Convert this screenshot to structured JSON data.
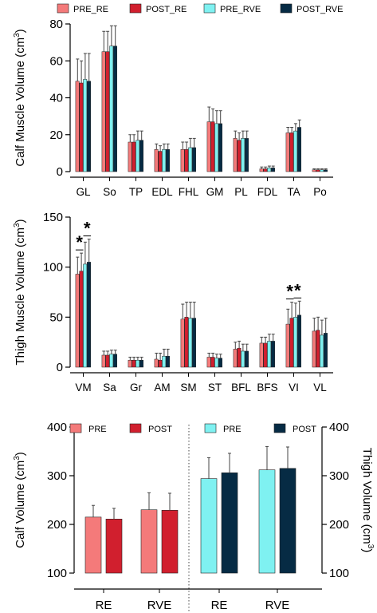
{
  "colors": {
    "pre_re": "#f47a7a",
    "post_re": "#d11f2e",
    "pre_rve": "#7ff1f1",
    "post_rve": "#062b44",
    "pre": "#f47a7a",
    "post": "#d11f2e"
  },
  "chart_data": [
    {
      "type": "bar",
      "ylabel": "Calf Muscle Volume (cm³)",
      "ylim": [
        0,
        80
      ],
      "yticks": [
        0,
        20,
        40,
        60,
        80
      ],
      "categories": [
        "GL",
        "So",
        "TP",
        "EDL",
        "FHL",
        "GM",
        "PL",
        "FDL",
        "TA",
        "Po"
      ],
      "legend_position": "top",
      "series": [
        {
          "name": "PRE_RE",
          "values": [
            49,
            65,
            16,
            12,
            12,
            27,
            18,
            1.5,
            21,
            1
          ],
          "errors": [
            12,
            11,
            4,
            3,
            4,
            8,
            4,
            1,
            3,
            0.5
          ]
        },
        {
          "name": "POST_RE",
          "values": [
            48,
            65,
            16,
            11,
            12,
            27,
            17,
            1.5,
            21,
            1
          ],
          "errors": [
            12,
            11,
            4,
            3,
            4,
            7,
            4,
            1,
            3,
            0.5
          ]
        },
        {
          "name": "PRE_RVE",
          "values": [
            50,
            68,
            17,
            12,
            13,
            26,
            18,
            2,
            22,
            1
          ],
          "errors": [
            14,
            11,
            5,
            3,
            5,
            7,
            4,
            1,
            4,
            0.5
          ]
        },
        {
          "name": "POST_RVE",
          "values": [
            49,
            68,
            17,
            12,
            13,
            26,
            18,
            2,
            24,
            1
          ],
          "errors": [
            15,
            11,
            5,
            3,
            5,
            7,
            4,
            1,
            4,
            0.5
          ]
        }
      ]
    },
    {
      "type": "bar",
      "ylabel": "Thigh Muscle Volume (cm³)",
      "ylim": [
        0,
        150
      ],
      "yticks": [
        0,
        50,
        100,
        150
      ],
      "categories": [
        "VM",
        "Sa",
        "Gr",
        "AM",
        "SM",
        "ST",
        "BFL",
        "BFS",
        "VI",
        "VL"
      ],
      "significance": [
        {
          "category": "VM",
          "pair": "RE",
          "symbol": "*"
        },
        {
          "category": "VM",
          "pair": "RVE",
          "symbol": "*"
        },
        {
          "category": "VI",
          "pair": "RE",
          "symbol": "*"
        },
        {
          "category": "VI",
          "pair": "RVE",
          "symbol": "*"
        }
      ],
      "series": [
        {
          "name": "PRE_RE",
          "values": [
            93,
            12,
            7,
            8,
            48,
            10,
            18,
            24,
            43,
            36
          ],
          "errors": [
            17,
            4,
            3,
            6,
            15,
            4,
            7,
            6,
            15,
            13
          ]
        },
        {
          "name": "POST_RE",
          "values": [
            96,
            12,
            7,
            7,
            50,
            10,
            19,
            24,
            49,
            37
          ],
          "errors": [
            18,
            4,
            3,
            7,
            15,
            4,
            7,
            6,
            16,
            13
          ]
        },
        {
          "name": "PRE_RVE",
          "values": [
            103,
            13,
            7,
            11,
            49,
            9,
            16,
            26,
            50,
            32
          ],
          "errors": [
            22,
            4,
            3,
            7,
            16,
            4,
            7,
            7,
            14,
            15
          ]
        },
        {
          "name": "POST_RVE",
          "values": [
            105,
            13,
            7,
            11,
            49,
            9,
            16,
            26,
            52,
            34
          ],
          "errors": [
            23,
            4,
            3,
            7,
            16,
            4,
            7,
            7,
            14,
            15
          ]
        }
      ]
    },
    {
      "type": "bar",
      "ylabel_left": "Calf Volume (cm³)",
      "ylabel_right": "Thigh Volume (cm³)",
      "ylim": [
        100,
        400
      ],
      "yticks": [
        100,
        200,
        300,
        400
      ],
      "legend_left": [
        "PRE",
        "POST"
      ],
      "legend_right": [
        "PRE",
        "POST"
      ],
      "groups": [
        {
          "region": "calf",
          "label": "RE",
          "pre": 215,
          "post": 211,
          "pre_err": 24,
          "post_err": 22
        },
        {
          "region": "calf",
          "label": "RVE",
          "pre": 230,
          "post": 229,
          "pre_err": 35,
          "post_err": 35
        },
        {
          "region": "thigh",
          "label": "RE",
          "pre": 294,
          "post": 306,
          "pre_err": 43,
          "post_err": 40
        },
        {
          "region": "thigh",
          "label": "RVE",
          "pre": 312,
          "post": 315,
          "pre_err": 48,
          "post_err": 44
        }
      ]
    }
  ]
}
